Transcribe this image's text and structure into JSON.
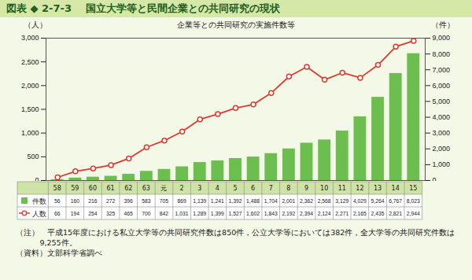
{
  "chart_data": {
    "type": "bar",
    "figure_label": "図表 ◆ 2-7-3",
    "title": "国立大学等と民間企業との共同研究の現状",
    "subtitle": "企業等との共同研究の実施件数等",
    "y_label": "（人）",
    "y2_label": "（件）",
    "categories": [
      "58",
      "59",
      "60",
      "61",
      "62",
      "63",
      "元",
      "2",
      "3",
      "4",
      "5",
      "6",
      "7",
      "8",
      "9",
      "10",
      "11",
      "12",
      "13",
      "14",
      "15"
    ],
    "series": [
      {
        "name": "件数",
        "type": "bar",
        "axis": "y2",
        "color": "#6cbf4f",
        "values": [
          56,
          160,
          216,
          272,
          396,
          583,
          705,
          869,
          1139,
          1241,
          1392,
          1488,
          1704,
          2001,
          2362,
          2568,
          3129,
          4029,
          5264,
          6767,
          8023
        ],
        "value_labels": [
          "56",
          "160",
          "216",
          "272",
          "396",
          "583",
          "705",
          "869",
          "1,139",
          "1,241",
          "1,392",
          "1,488",
          "1,704",
          "2,001",
          "2,362",
          "2,568",
          "3,129",
          "4,029",
          "5,264",
          "6,767",
          "8,023"
        ]
      },
      {
        "name": "人数",
        "type": "line",
        "color": "#e03a2e",
        "marker": "circle",
        "values": [
          66,
          194,
          254,
          325,
          465,
          700,
          842,
          1031,
          1289,
          1399,
          1527,
          1602,
          1843,
          2192,
          2394,
          2124,
          2271,
          2165,
          2435,
          2821,
          2944
        ],
        "value_labels": [
          "66",
          "194",
          "254",
          "325",
          "465",
          "700",
          "842",
          "1,031",
          "1,289",
          "1,399",
          "1,527",
          "1,602",
          "1,843",
          "2,192",
          "2,394",
          "2,124",
          "2,271",
          "2,165",
          "2,435",
          "2,821",
          "2,944"
        ]
      }
    ],
    "ylim": [
      0,
      3000
    ],
    "yticks": [
      0,
      500,
      {
        "value": 1000,
        "label": "1,000"
      },
      {
        "value": 1500,
        "label": "1,500"
      },
      {
        "value": 2000,
        "label": "2,000"
      },
      {
        "value": 2500,
        "label": "2,500"
      },
      {
        "value": 3000,
        "label": "3,000"
      }
    ],
    "y2lim": [
      0,
      9000
    ],
    "y2ticks": [
      0,
      {
        "value": 1000,
        "label": "1,000"
      },
      {
        "value": 2000,
        "label": "2,000"
      },
      {
        "value": 3000,
        "label": "3,000"
      },
      {
        "value": 4000,
        "label": "4,000"
      },
      {
        "value": 5000,
        "label": "5,000"
      },
      {
        "value": 6000,
        "label": "6,000"
      },
      {
        "value": 7000,
        "label": "7,000"
      },
      {
        "value": 8000,
        "label": "8,000"
      },
      {
        "value": 9000,
        "label": "9,000"
      }
    ],
    "grid": false,
    "data_labels": true,
    "annotations": [
      "（注）　平成15年度における私立大学等の共同研究件数は850件，公立大学等においては382件，全大学等の共同研究件数は9,255件。",
      "（資料）文部科学省調べ"
    ]
  }
}
